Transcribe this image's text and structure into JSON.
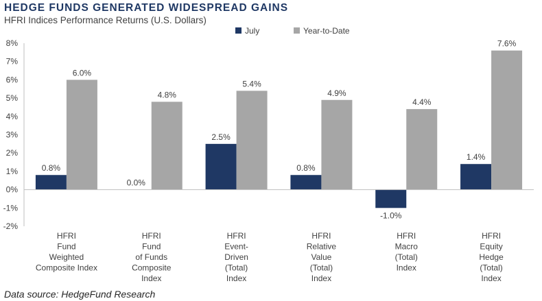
{
  "title": "HEDGE FUNDS GENERATED WIDESPREAD GAINS",
  "subtitle": "HFRI Indices Performance Returns (U.S. Dollars)",
  "source": "Data source: HedgeFund Research",
  "colors": {
    "july": "#1f3864",
    "ytd": "#a6a6a6",
    "axis": "#bfbfbf",
    "text": "#404040"
  },
  "chart_data": {
    "type": "bar",
    "title": "HFRI Indices Performance Returns (U.S. Dollars)",
    "xlabel": "",
    "ylabel": "",
    "ylim": [
      -2,
      8
    ],
    "ytick_step": 1,
    "ytick_labels": [
      "-2%",
      "-1%",
      "0%",
      "1%",
      "2%",
      "3%",
      "4%",
      "5%",
      "6%",
      "7%",
      "8%"
    ],
    "grid": false,
    "legend_position": "top-center",
    "categories": [
      [
        "HFRI",
        "Fund",
        "Weighted",
        "Composite Index"
      ],
      [
        "HFRI",
        "Fund",
        "of Funds",
        "Composite",
        "Index"
      ],
      [
        "HFRI",
        "Event-",
        "Driven",
        "(Total)",
        "Index"
      ],
      [
        "HFRI",
        "Relative",
        "Value",
        "(Total)",
        "Index"
      ],
      [
        "HFRI",
        "Macro",
        "(Total)",
        "Index"
      ],
      [
        "HFRI",
        "Equity",
        "Hedge",
        "(Total)",
        "Index"
      ]
    ],
    "series": [
      {
        "name": "July",
        "values": [
          0.8,
          0.0,
          2.5,
          0.8,
          -1.0,
          1.4
        ],
        "labels": [
          "0.8%",
          "0.0%",
          "2.5%",
          "0.8%",
          "-1.0%",
          "1.4%"
        ]
      },
      {
        "name": "Year-to-Date",
        "values": [
          6.0,
          4.8,
          5.4,
          4.9,
          4.4,
          7.6
        ],
        "labels": [
          "6.0%",
          "4.8%",
          "5.4%",
          "4.9%",
          "4.4%",
          "7.6%"
        ]
      }
    ]
  }
}
